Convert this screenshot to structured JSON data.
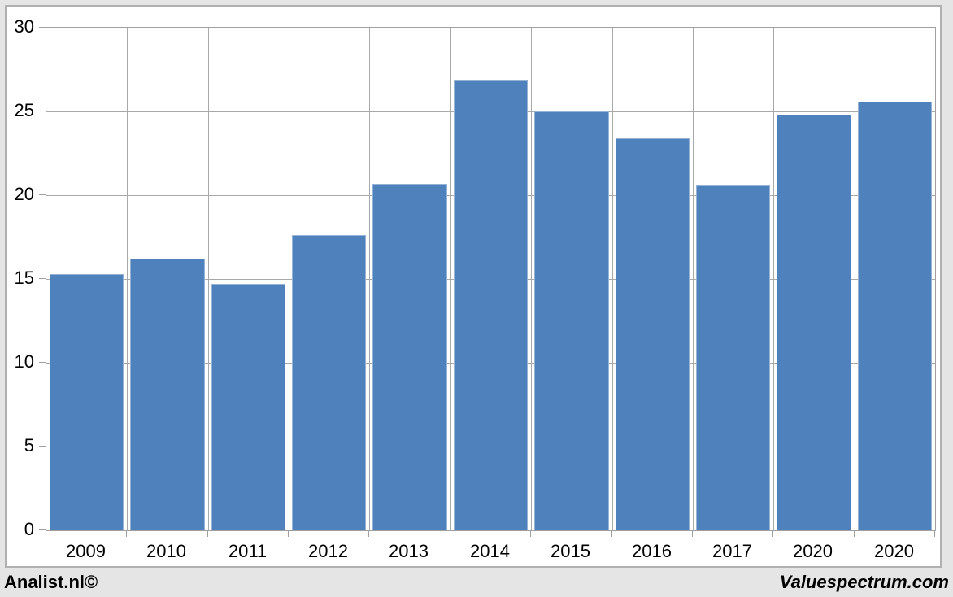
{
  "page": {
    "background": "#e5e5e5",
    "canvas_background": "#ffffff",
    "canvas_border_color": "#b0b0b0"
  },
  "footer": {
    "left_text": "Analist.nl©",
    "right_text": "Valuespectrum.com"
  },
  "chart_data": {
    "type": "bar",
    "title": "",
    "xlabel": "",
    "ylabel": "",
    "categories": [
      "2009",
      "2010",
      "2011",
      "2012",
      "2013",
      "2014",
      "2015",
      "2016",
      "2017",
      "2020",
      "2020"
    ],
    "values": [
      15.3,
      16.2,
      14.7,
      17.6,
      20.7,
      26.9,
      25.0,
      23.4,
      20.6,
      24.8,
      25.6
    ],
    "ylim": [
      0,
      30
    ],
    "yticks": [
      0,
      5,
      10,
      15,
      20,
      25,
      30
    ],
    "ytick_step": 5,
    "grid": true,
    "legend_position": "none",
    "bar_color": "#4f81bd",
    "bar_border_color": "#95b3d7",
    "grid_color": "#a9a9a9",
    "axis_color": "#a0a0a0",
    "text_color": "#000000"
  }
}
